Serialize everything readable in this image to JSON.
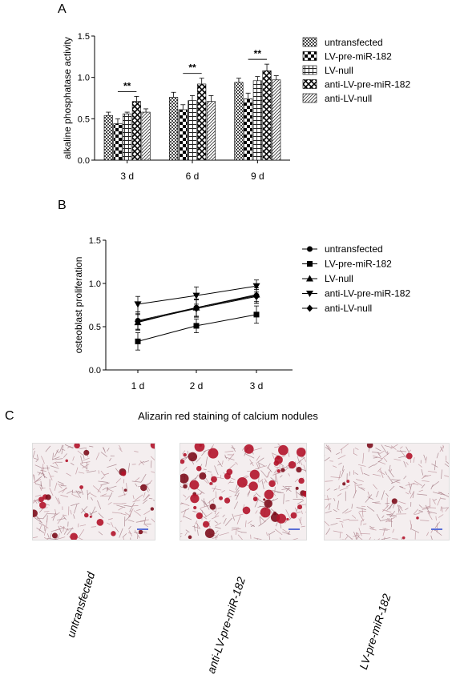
{
  "panels": {
    "a": "A",
    "b": "B",
    "c": "C"
  },
  "chart_data": [
    {
      "type": "bar",
      "ylabel": "alkaline phosphatase activity",
      "xlabel": "",
      "ylim": [
        0,
        1.5
      ],
      "yticks": [
        "0.0",
        "0.5",
        "1.0",
        "1.5"
      ],
      "categories": [
        "3 d",
        "6 d",
        "9 d"
      ],
      "series": [
        {
          "name": "untransfected",
          "values": [
            0.54,
            0.76,
            0.94
          ],
          "errors": [
            0.04,
            0.06,
            0.05
          ]
        },
        {
          "name": "LV-pre-miR-182",
          "values": [
            0.44,
            0.61,
            0.74
          ],
          "errors": [
            0.06,
            0.06,
            0.07
          ]
        },
        {
          "name": "LV-null",
          "values": [
            0.56,
            0.72,
            0.96
          ],
          "errors": [
            0.02,
            0.06,
            0.05
          ]
        },
        {
          "name": "anti-LV-pre-miR-182",
          "values": [
            0.71,
            0.92,
            1.08
          ],
          "errors": [
            0.06,
            0.07,
            0.08
          ]
        },
        {
          "name": "anti-LV-null",
          "values": [
            0.58,
            0.71,
            0.97
          ],
          "errors": [
            0.04,
            0.07,
            0.05
          ]
        }
      ],
      "annotations": [
        "**",
        "**",
        "**"
      ],
      "legend": "right"
    },
    {
      "type": "line",
      "ylabel": "osteoblast proliferation",
      "xlabel": "",
      "ylim": [
        0,
        1.5
      ],
      "yticks": [
        "0.0",
        "0.5",
        "1.0",
        "1.5"
      ],
      "categories": [
        "1 d",
        "2 d",
        "3 d"
      ],
      "series": [
        {
          "name": "untransfected",
          "values": [
            0.57,
            0.72,
            0.86
          ],
          "errors": [
            0.1,
            0.1,
            0.09
          ],
          "marker": "circle"
        },
        {
          "name": "LV-pre-miR-182",
          "values": [
            0.33,
            0.51,
            0.64
          ],
          "errors": [
            0.1,
            0.08,
            0.1
          ],
          "marker": "square"
        },
        {
          "name": "LV-null",
          "values": [
            0.55,
            0.72,
            0.87
          ],
          "errors": [
            0.09,
            0.1,
            0.08
          ],
          "marker": "triangle-up"
        },
        {
          "name": "anti-LV-pre-miR-182",
          "values": [
            0.76,
            0.86,
            0.97
          ],
          "errors": [
            0.09,
            0.1,
            0.07
          ],
          "marker": "triangle-down"
        },
        {
          "name": "anti-LV-null",
          "values": [
            0.56,
            0.71,
            0.85
          ],
          "errors": [
            0.09,
            0.1,
            0.08
          ],
          "marker": "diamond"
        }
      ],
      "legend": "right"
    }
  ],
  "staining": {
    "title": "Alizarin red staining of calcium nodules",
    "images": [
      {
        "label": "untransfected"
      },
      {
        "label": "anti-LV-pre-miR-182"
      },
      {
        "label": "LV-pre-miR-182"
      }
    ]
  }
}
